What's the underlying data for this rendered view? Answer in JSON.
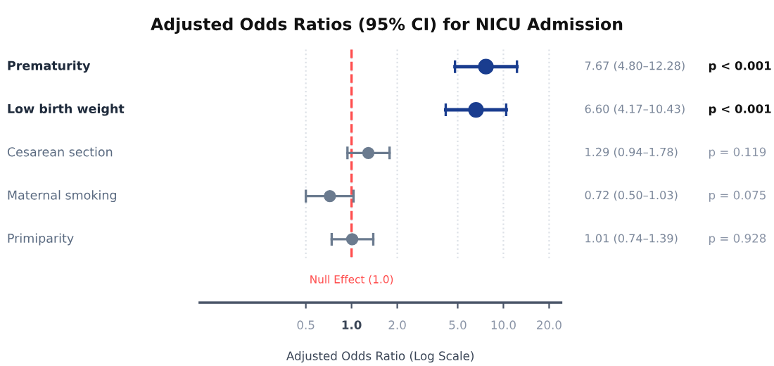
{
  "chart_data": {
    "type": "scatter",
    "orientation": "horizontal",
    "title": "Adjusted Odds Ratios (95% CI) for NICU Admission",
    "xlabel": "Adjusted Odds Ratio (Log Scale)",
    "categories": [
      "Prematurity",
      "Low birth weight",
      "Cesarean section",
      "Maternal smoking",
      "Primiparity"
    ],
    "values": [
      7.67,
      6.6,
      1.29,
      0.72,
      1.01
    ],
    "errors": [
      [
        4.8,
        12.28
      ],
      [
        4.17,
        10.43
      ],
      [
        0.94,
        1.78
      ],
      [
        0.5,
        1.03
      ],
      [
        0.74,
        1.39
      ]
    ],
    "colors": [
      "#1a3d8f",
      "#1a3d8f",
      "#6b7b8f",
      "#6b7b8f",
      "#6b7b8f"
    ],
    "sizes": [
      1,
      1,
      0.56,
      0.56,
      0.56
    ],
    "annotations": [
      "7.67 (4.80–12.28)",
      "6.60 (4.17–10.43)",
      "1.29 (0.94–1.78)",
      "0.72 (0.50–1.03)",
      "1.01 (0.74–1.39)",
      "p < 0.001",
      "p < 0.001",
      "p = 0.119",
      "p = 0.075",
      "p = 0.928"
    ],
    "ref_lines": [
      {
        "axis": "x",
        "value": 1,
        "label": "Null Effect (1.0)",
        "color": "#ff4d4d",
        "line_style": "dashed"
      }
    ],
    "log": "x",
    "xlim": [
      0.1,
      24
    ],
    "xticks": [
      {
        "value": 0.5,
        "label": "0.5"
      },
      {
        "value": 1,
        "label": "1.0"
      },
      {
        "value": 2,
        "label": "2.0"
      },
      {
        "value": 5,
        "label": "5.0"
      },
      {
        "value": 10,
        "label": "10.0"
      },
      {
        "value": 20,
        "label": "20.0"
      }
    ],
    "grid": "x",
    "marker": "circle",
    "tick_labels": "x"
  }
}
